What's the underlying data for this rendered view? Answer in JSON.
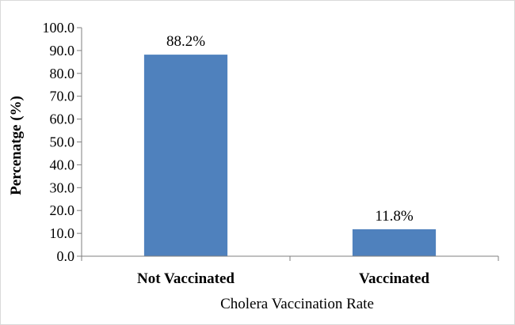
{
  "chart_data": {
    "type": "bar",
    "categories": [
      "Not Vaccinated",
      "Vaccinated"
    ],
    "values": [
      88.2,
      11.8
    ],
    "data_labels": [
      "88.2%",
      "11.8%"
    ],
    "bar_color": "#4f81bd",
    "xlabel": "Cholera Vaccination Rate",
    "ylabel": "Percenatge (%)",
    "ylim": [
      0,
      100
    ],
    "yticks": [
      "0.0",
      "10.0",
      "20.0",
      "30.0",
      "40.0",
      "50.0",
      "60.0",
      "70.0",
      "80.0",
      "90.0",
      "100.0"
    ],
    "grid": false,
    "legend": "none"
  }
}
